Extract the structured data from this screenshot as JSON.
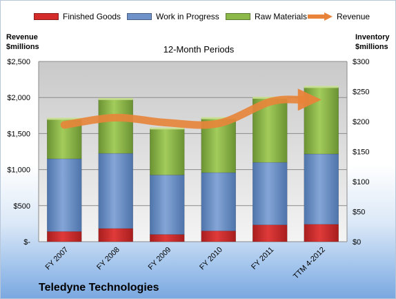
{
  "legend": {
    "finished_goods": "Finished Goods",
    "work_in_progress": "Work in Progress",
    "raw_materials": "Raw Materials",
    "revenue": "Revenue"
  },
  "axes": {
    "left_title_line1": "Revenue",
    "left_title_line2": "$millions",
    "right_title_line1": "Inventory",
    "right_title_line2": "$millions"
  },
  "subtitle": "12-Month Periods",
  "company": "Teledyne Technologies",
  "colors": {
    "finished_goods": "#d42b2b",
    "work_in_progress": "#6f93c9",
    "raw_materials": "#8db84a",
    "revenue": "#e8843a"
  },
  "chart_data": {
    "type": "bar",
    "stacked": true,
    "categories": [
      "FY 2007",
      "FY 2008",
      "FY 2009",
      "FY 2010",
      "FY 2011",
      "TTM 4-2012"
    ],
    "series": [
      {
        "name": "Finished Goods",
        "axis": "right",
        "values": [
          17,
          22,
          12,
          18,
          28,
          29
        ]
      },
      {
        "name": "Work in Progress",
        "axis": "right",
        "values": [
          121,
          125,
          99,
          97,
          104,
          117
        ]
      },
      {
        "name": "Raw Materials",
        "axis": "right",
        "values": [
          66,
          90,
          77,
          90,
          107,
          111
        ]
      },
      {
        "name": "Revenue",
        "type": "line",
        "axis": "left",
        "values": [
          1620,
          1720,
          1650,
          1640,
          1940,
          1970
        ]
      }
    ],
    "left_axis": {
      "title": "Revenue $millions",
      "min": 0,
      "max": 2500,
      "ticks": [
        "$-",
        "$500",
        "$1,000",
        "$1,500",
        "$2,000",
        "$2,500"
      ]
    },
    "right_axis": {
      "title": "Inventory $millions",
      "min": 0,
      "max": 300,
      "ticks": [
        "$0",
        "$50",
        "$100",
        "$150",
        "$200",
        "$250",
        "$300"
      ]
    },
    "grid": true
  }
}
